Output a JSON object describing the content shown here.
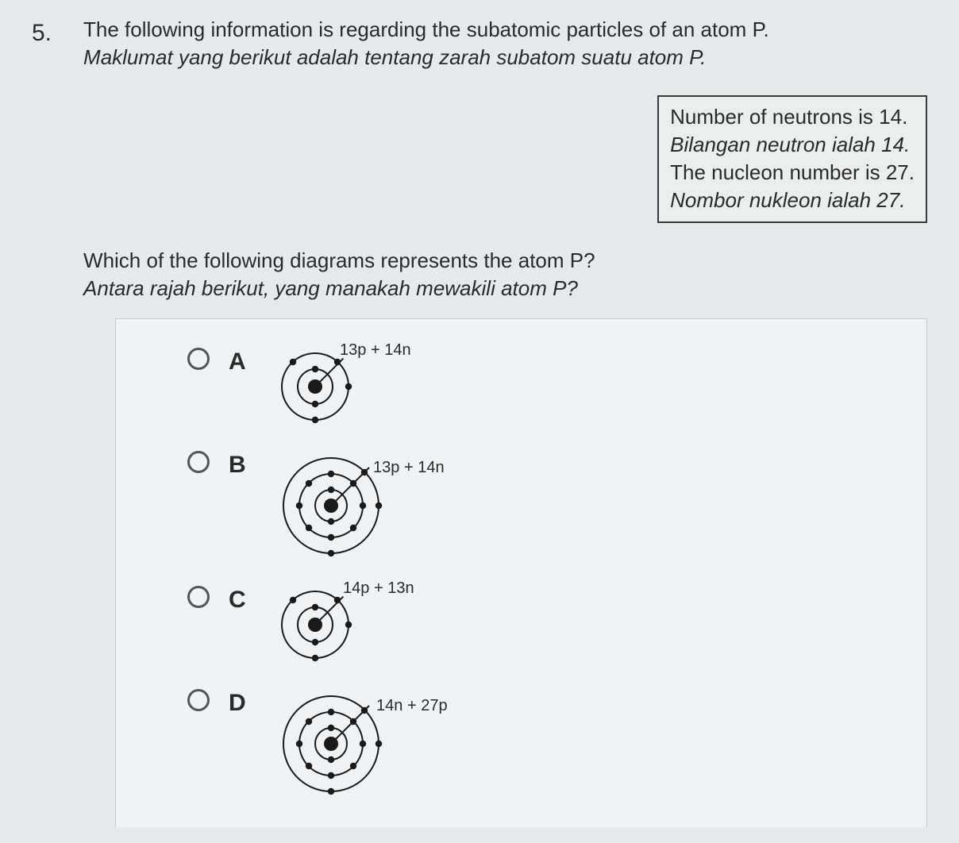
{
  "question_number": "5.",
  "question_en": "The following information is regarding the subatomic particles of an atom P.",
  "question_ms": "Maklumat yang berikut adalah tentang zarah subatom suatu atom P.",
  "info_box": {
    "line1_en": "Number of neutrons is 14.",
    "line1_ms": "Bilangan neutron ialah 14.",
    "line2_en": "The nucleon number is 27.",
    "line2_ms": "Nombor nukleon ialah 27."
  },
  "prompt_en": "Which of the following diagrams represents the atom P?",
  "prompt_ms": "Antara rajah berikut, yang manakah mewakili atom P?",
  "options": {
    "a": {
      "letter": "A",
      "nucleus": "13p + 14n"
    },
    "b": {
      "letter": "B",
      "nucleus": "13p + 14n"
    },
    "c": {
      "letter": "C",
      "nucleus": "14p + 13n"
    },
    "d": {
      "letter": "D",
      "nucleus": "14n + 27p"
    }
  },
  "style": {
    "bg": "#e8e9eb",
    "panel_bg": "#f1f2f3",
    "text": "#2a2a2a",
    "stroke": "#1a1a1a",
    "electron_fill": "#1a1a1a",
    "label_fontsize": 20
  },
  "diagrams": {
    "small": {
      "size": 110,
      "shells": [
        22,
        42
      ],
      "nucleus_r": 9,
      "electron_r": 4.2,
      "electrons": {
        "shell1": [
          [
            0,
            -22
          ],
          [
            0,
            22
          ]
        ],
        "shell2": [
          [
            28,
            -31
          ],
          [
            42,
            0
          ],
          [
            0,
            42
          ],
          [
            -28,
            -31
          ]
        ]
      }
    },
    "large": {
      "size": 150,
      "shells": [
        20,
        40,
        60
      ],
      "nucleus_r": 9,
      "electron_r": 4.2,
      "electrons": {
        "shell1": [
          [
            0,
            -20
          ],
          [
            0,
            20
          ]
        ],
        "shell2": [
          [
            0,
            -40
          ],
          [
            28,
            -28
          ],
          [
            40,
            0
          ],
          [
            28,
            28
          ],
          [
            0,
            40
          ],
          [
            -28,
            28
          ],
          [
            -40,
            0
          ],
          [
            -28,
            -28
          ]
        ],
        "shell3": [
          [
            42,
            -42
          ],
          [
            60,
            0
          ],
          [
            0,
            60
          ]
        ]
      }
    }
  }
}
